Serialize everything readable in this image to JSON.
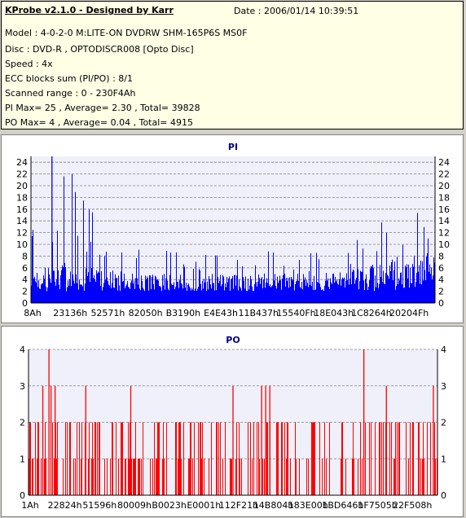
{
  "header": {
    "title": "KProbe v2.1.0 - Designed by Karr",
    "date": "Date : 2006/01/14 10:39:51",
    "lines": [
      "Model : 4-0-2-0 M:LITE-ON DVDRW SHM-165P6S MS0F",
      "Disc : DVD-R , OPTODISCR008 [Opto Disc]",
      "Speed : 4x",
      "ECC blocks sum (PI/PO) : 8/1",
      "Scanned range : 0 - 230F4Ah",
      "PI Max= 25 , Average= 2.30 , Total= 39828",
      "PO Max= 4 , Average= 0.04 , Total= 4915"
    ]
  },
  "colors": {
    "background": "#d4d0c8",
    "info_panel": "#ffffe6",
    "plot_area": "#f0f0fa",
    "pi_series": "#0000ff",
    "po_series": "#ff0000",
    "title": "#000080",
    "grid": "#808080"
  },
  "chart_data": [
    {
      "type": "bar",
      "title": "PI",
      "xlabel": "",
      "ylabel": "",
      "ylim": [
        0,
        25
      ],
      "yticks": [
        0,
        2,
        4,
        6,
        8,
        10,
        12,
        14,
        16,
        18,
        20,
        22,
        24
      ],
      "xticks": [
        "8Ah",
        "23136h",
        "52571h",
        "82050h",
        "B3190h",
        "E4E43h",
        "11B437h",
        "15540Fh",
        "18E043h",
        "1C8264h",
        "20204Fh"
      ],
      "grid": "horizontal dashed",
      "axis_labels_both_sides": true,
      "series": [
        {
          "name": "PI",
          "max": 25,
          "average": 2.3,
          "profile": [
            {
              "x": "8Ah",
              "level": 6,
              "peak": 12
            },
            {
              "x": "23136h",
              "level": 7,
              "peak": 25
            },
            {
              "x": "52571h",
              "level": 6,
              "peak": 11
            },
            {
              "x": "82050h",
              "level": 5,
              "peak": 10
            },
            {
              "x": "B3190h",
              "level": 5,
              "peak": 9
            },
            {
              "x": "E4E43h",
              "level": 5,
              "peak": 9
            },
            {
              "x": "11B437h",
              "level": 5,
              "peak": 9
            },
            {
              "x": "15540Fh",
              "level": 5,
              "peak": 9
            },
            {
              "x": "18E043h",
              "level": 5,
              "peak": 10
            },
            {
              "x": "1C8264h",
              "level": 6,
              "peak": 11
            },
            {
              "x": "20204Fh",
              "level": 8,
              "peak": 17
            },
            {
              "x": "230F4Ah",
              "level": 9,
              "peak": 16
            }
          ]
        }
      ]
    },
    {
      "type": "bar",
      "title": "PO",
      "xlabel": "",
      "ylabel": "",
      "ylim": [
        0,
        4
      ],
      "yticks": [
        0,
        1,
        2,
        3,
        4
      ],
      "xticks": [
        "1Ah",
        "22824h",
        "51596h",
        "80009h",
        "B0023h",
        "E0001h",
        "112F21h",
        "14B804h",
        "183E00h",
        "1BD646h",
        "1F7505h",
        "22F508h"
      ],
      "grid": "horizontal dashed",
      "axis_labels_both_sides": true,
      "series": [
        {
          "name": "PO",
          "max": 4,
          "average": 0.04,
          "spikes": [
            {
              "x": "1Ah",
              "value": 2
            },
            {
              "x": "22824h",
              "value": 4
            },
            {
              "x": "22824h",
              "value": 3
            },
            {
              "x": "51596h",
              "value": 3
            },
            {
              "x": "80009h",
              "value": 3
            },
            {
              "x": "B0023h",
              "value": 2
            },
            {
              "x": "112F21h",
              "value": 3
            },
            {
              "x": "14B804h",
              "value": 2
            },
            {
              "x": "1BD646h",
              "value": 4
            },
            {
              "x": "1F7505h",
              "value": 3
            },
            {
              "x": "22F508h",
              "value": 3
            }
          ]
        }
      ]
    }
  ]
}
